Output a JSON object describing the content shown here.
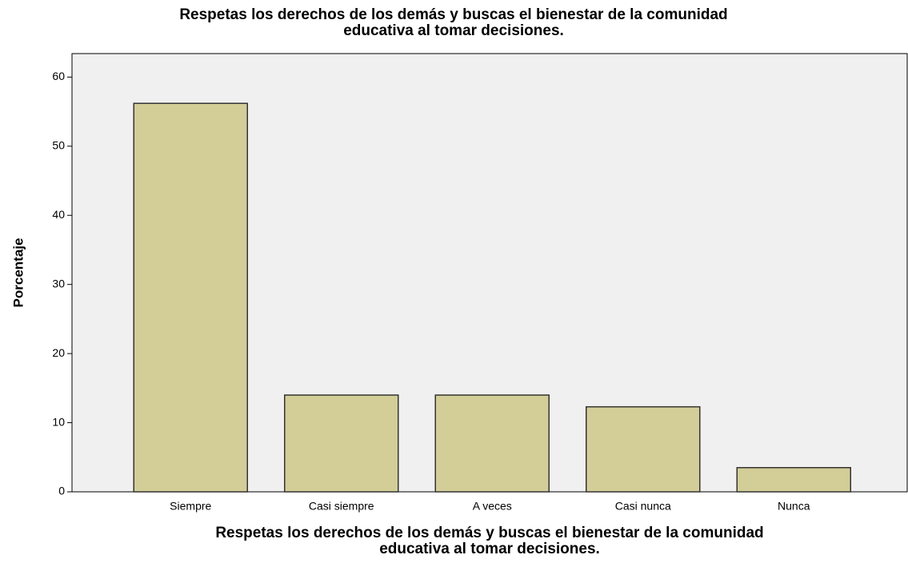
{
  "chart_data": {
    "type": "bar",
    "title": [
      "Respetas los derechos de los demás y buscas el bienestar de la comunidad",
      "educativa al tomar decisiones."
    ],
    "xlabel": [
      "Respetas los derechos de los demás y buscas el bienestar de la comunidad",
      "educativa al tomar decisiones."
    ],
    "ylabel": "Porcentaje",
    "categories": [
      "Siempre",
      "Casi siempre",
      "A veces",
      "Casi nunca",
      "Nunca"
    ],
    "values": [
      56.2,
      14.0,
      14.0,
      12.3,
      3.5
    ],
    "color": "#d3ce97",
    "ylim": [
      0,
      63.4
    ],
    "yticks": [
      0,
      10,
      20,
      30,
      40,
      50,
      60
    ]
  }
}
